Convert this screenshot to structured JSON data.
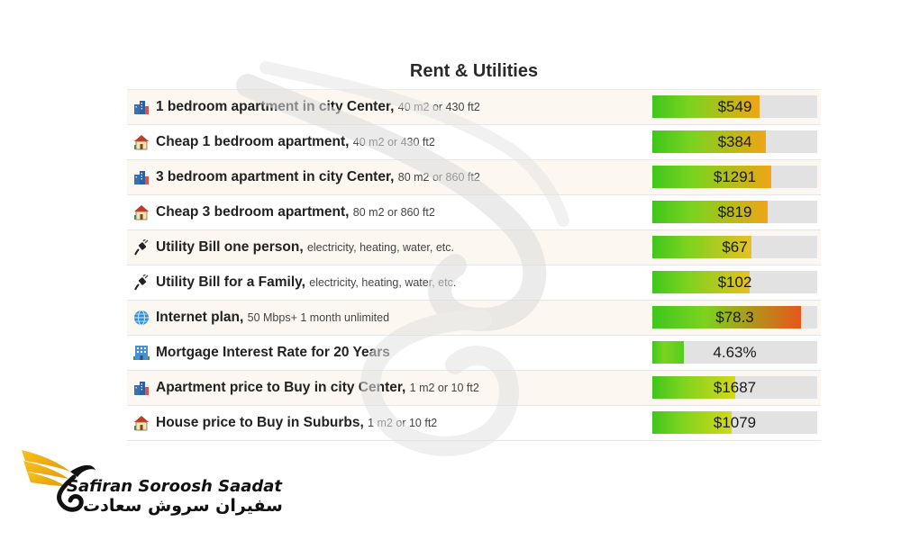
{
  "title": "Rent & Utilities",
  "rows": [
    {
      "icon": "city-building-icon",
      "label": "1 bedroom apartment in city Center,",
      "detail": "40 m2 or 430 ft2",
      "value": "$549",
      "fill_fraction": 0.65,
      "gradient_end": "#f0a515"
    },
    {
      "icon": "house-icon",
      "label": "Cheap 1 bedroom apartment,",
      "detail": "40 m2 or 430 ft2",
      "value": "$384",
      "fill_fraction": 0.69,
      "gradient_end": "#f0a515"
    },
    {
      "icon": "city-building-icon",
      "label": "3 bedroom apartment in city Center,",
      "detail": "80 m2 or 860 ft2",
      "value": "$1291",
      "fill_fraction": 0.72,
      "gradient_end": "#f0a515"
    },
    {
      "icon": "house-icon",
      "label": "Cheap 3 bedroom apartment,",
      "detail": "80 m2 or 860 ft2",
      "value": "$819",
      "fill_fraction": 0.7,
      "gradient_end": "#f0a515"
    },
    {
      "icon": "plug-icon",
      "label": "Utility Bill one person,",
      "detail": "electricity, heating, water, etc.",
      "value": "$67",
      "fill_fraction": 0.6,
      "gradient_end": "#e8c020"
    },
    {
      "icon": "plug-icon",
      "label": "Utility Bill for a Family,",
      "detail": "electricity, heating, water, etc.",
      "value": "$102",
      "fill_fraction": 0.59,
      "gradient_end": "#e8c020"
    },
    {
      "icon": "globe-icon",
      "label": "Internet plan,",
      "detail": "50 Mbps+ 1 month unlimited",
      "value": "$78.3",
      "fill_fraction": 0.9,
      "gradient_end": "#e8561a"
    },
    {
      "icon": "office-building-icon",
      "label": "Mortgage Interest Rate for 20 Years",
      "detail": "",
      "value": "4.63%",
      "fill_fraction": 0.19,
      "gradient_end": "#57cc22"
    },
    {
      "icon": "city-building-icon",
      "label": "Apartment price to Buy in city Center,",
      "detail": "1 m2 or 10 ft2",
      "value": "$1687",
      "fill_fraction": 0.5,
      "gradient_end": "#d4d818"
    },
    {
      "icon": "house-icon",
      "label": "House price to Buy in Suburbs,",
      "detail": "1 m2 or 10 ft2",
      "value": "$1079",
      "fill_fraction": 0.48,
      "gradient_end": "#d4d818"
    }
  ],
  "logo": {
    "name_en": "Safiran Soroosh Saadat",
    "name_fa": "سفیران سروش سعادت"
  }
}
